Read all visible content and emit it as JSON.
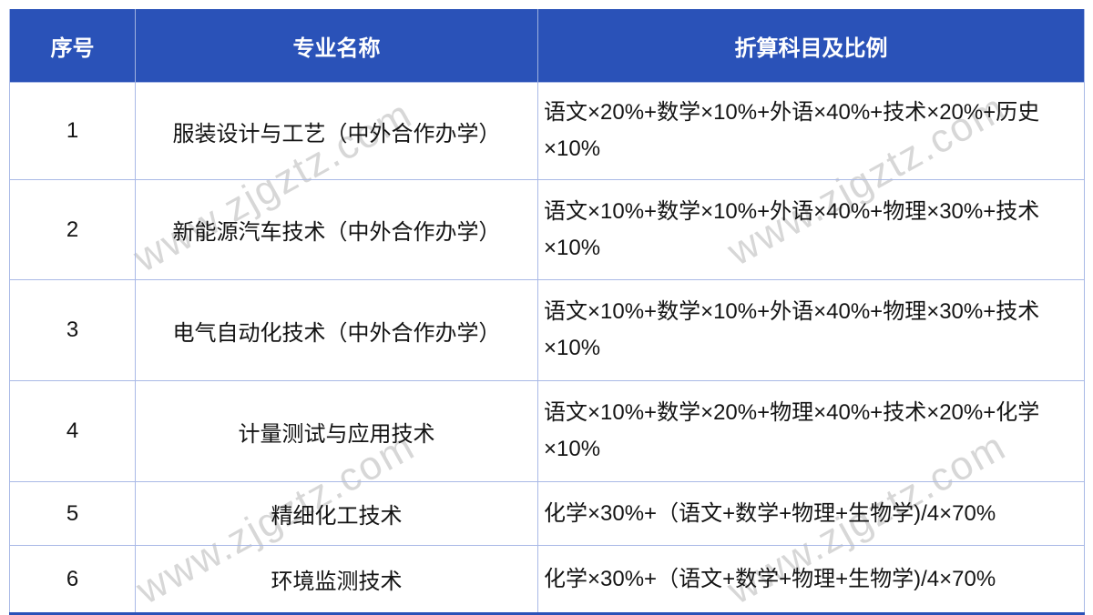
{
  "colors": {
    "header_bg": "#2a52b8",
    "header_text": "#ffffff",
    "cell_border": "#a9b9e6",
    "bottom_rule": "#2a52b8",
    "body_text": "#141414",
    "watermark": "#d7d7d7"
  },
  "watermark": {
    "text": "www.zjgztz.com"
  },
  "table": {
    "columns": [
      {
        "label": "序号"
      },
      {
        "label": "专业名称"
      },
      {
        "label": "折算科目及比例"
      }
    ],
    "rows": [
      {
        "no": "1",
        "major": "服装设计与工艺（中外合作办学）",
        "formula": "语文×20%+数学×10%+外语×40%+技术×20%+历史×10%"
      },
      {
        "no": "2",
        "major": "新能源汽车技术（中外合作办学）",
        "formula": "语文×10%+数学×10%+外语×40%+物理×30%+技术×10%"
      },
      {
        "no": "3",
        "major": "电气自动化技术（中外合作办学）",
        "formula": "语文×10%+数学×10%+外语×40%+物理×30%+技术×10%"
      },
      {
        "no": "4",
        "major": "计量测试与应用技术",
        "formula": "语文×10%+数学×20%+物理×40%+技术×20%+化学×10%"
      },
      {
        "no": "5",
        "major": "精细化工技术",
        "formula": "化学×30%+（语文+数学+物理+生物学)/4×70%"
      },
      {
        "no": "6",
        "major": "环境监测技术",
        "formula": "化学×30%+（语文+数学+物理+生物学)/4×70%"
      }
    ]
  }
}
